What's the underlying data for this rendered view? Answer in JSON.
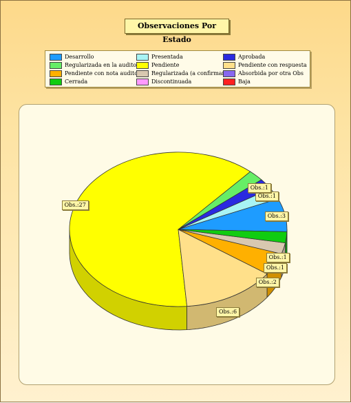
{
  "title": "Observaciones Por Estado",
  "legend": [
    {
      "label": "Desarrollo",
      "color": "#1e9cff"
    },
    {
      "label": "Presentada",
      "color": "#a8f4f4"
    },
    {
      "label": "Aprobada",
      "color": "#2a2ae0"
    },
    {
      "label": "Regularizada en la auditoria",
      "color": "#66ee66"
    },
    {
      "label": "Pendiente",
      "color": "#ffff00"
    },
    {
      "label": "Pendiente con respuesta",
      "color": "#ffe08a"
    },
    {
      "label": "Pendiente con nota auditor",
      "color": "#ffb000"
    },
    {
      "label": "Regularizada (a confirmar)",
      "color": "#d8c8b0"
    },
    {
      "label": "Absorbida por otra Obs",
      "color": "#8868f0"
    },
    {
      "label": "Cerrada",
      "color": "#10cc10"
    },
    {
      "label": "Discontinuada",
      "color": "#ff99ff"
    },
    {
      "label": "Baja",
      "color": "#ff2020"
    }
  ],
  "chart_data": {
    "type": "pie",
    "title": "Observaciones Por Estado",
    "slices": [
      {
        "name": "Desarrollo",
        "value": 3,
        "label": "Obs.:3",
        "color": "#1e9cff"
      },
      {
        "name": "Presentada",
        "value": 1,
        "label": "Obs.:1",
        "color": "#a8f4f4"
      },
      {
        "name": "Aprobada",
        "value": 1,
        "label": "Obs.:1",
        "color": "#2a2ae0"
      },
      {
        "name": "Regularizada en la auditoria",
        "value": 1,
        "label": "",
        "color": "#66ee66"
      },
      {
        "name": "Pendiente",
        "value": 27,
        "label": "Obs.:27",
        "color": "#ffff00"
      },
      {
        "name": "Pendiente con respuesta",
        "value": 6,
        "label": "Obs.:6",
        "color": "#ffe08a"
      },
      {
        "name": "Pendiente con nota auditor",
        "value": 2,
        "label": "Obs.:2",
        "color": "#ffb000"
      },
      {
        "name": "Regularizada (a confirmar)",
        "value": 1,
        "label": "Obs.:1",
        "color": "#d8c8b0"
      },
      {
        "name": "Absorbida por otra Obs",
        "value": 0,
        "label": "",
        "color": "#8868f0"
      },
      {
        "name": "Cerrada",
        "value": 1,
        "label": "Obs.:1",
        "color": "#10cc10"
      },
      {
        "name": "Discontinuada",
        "value": 0,
        "label": "",
        "color": "#ff99ff"
      },
      {
        "name": "Baja",
        "value": 0,
        "label": "",
        "color": "#ff2020"
      }
    ]
  }
}
